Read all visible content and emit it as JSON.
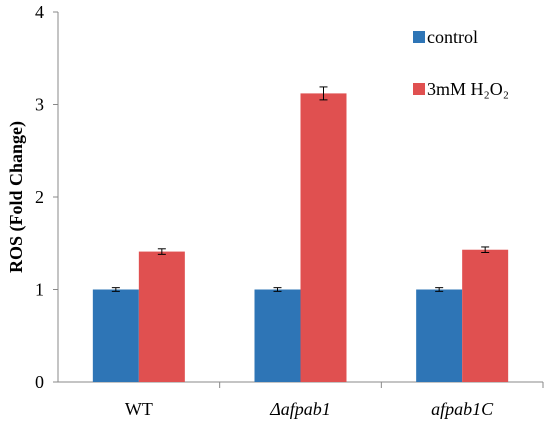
{
  "chart_data": {
    "type": "bar",
    "categories": [
      "WT",
      "Δafpab1",
      "afpab1C"
    ],
    "category_italic": [
      false,
      true,
      true
    ],
    "series": [
      {
        "name": "control",
        "values": [
          1.0,
          1.0,
          1.0
        ],
        "errors": [
          0.02,
          0.02,
          0.02
        ],
        "color": "#2E75B6"
      },
      {
        "name": "3mM H₂O₂",
        "values": [
          1.41,
          3.12,
          1.43
        ],
        "errors": [
          0.03,
          0.07,
          0.03
        ],
        "color": "#E05050"
      }
    ],
    "xlabel": "",
    "ylabel": "ROS (Fold Change)",
    "ylim": [
      0,
      4
    ],
    "yticks": [
      0,
      1,
      2,
      3,
      4
    ],
    "grid": false,
    "legend_position": "top-right"
  }
}
